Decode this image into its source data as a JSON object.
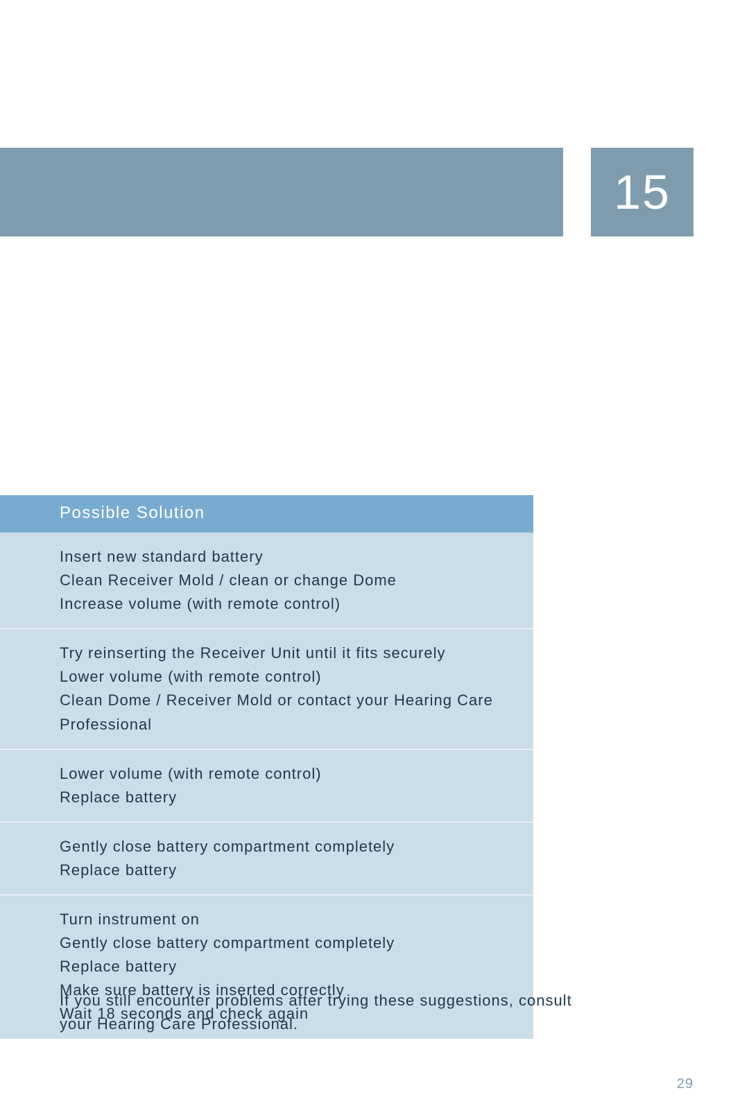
{
  "colors": {
    "page_bg": "#ffffff",
    "band_bg": "#7e9cae",
    "band_text": "#ffffff",
    "table_header_bg": "#78abcf",
    "table_header_text": "#ffffff",
    "table_row_bg": "#ccddea",
    "table_border": "#ffffff",
    "body_text": "#20394a",
    "folio_text": "#7e9cae"
  },
  "chapter_number": "15",
  "table": {
    "header": "Possible Solution",
    "rows": [
      [
        "Insert new standard battery",
        "Clean Receiver Mold / clean or change Dome",
        "Increase volume (with remote control)"
      ],
      [
        "Try reinserting the Receiver Unit until it fits securely",
        "Lower volume (with remote control)",
        "Clean Dome / Receiver Mold or contact your Hearing Care Professional"
      ],
      [
        "Lower volume (with remote control)",
        "Replace battery"
      ],
      [
        "Gently close battery compartment completely",
        "Replace battery"
      ],
      [
        "Turn instrument on",
        "Gently close battery compartment completely",
        "Replace battery",
        "Make sure battery is inserted correctly",
        "Wait 18 seconds and check again"
      ]
    ]
  },
  "footer_note": "If you still encounter problems after trying these suggestions, consult your Hearing Care Professional.",
  "page_folio": "29"
}
